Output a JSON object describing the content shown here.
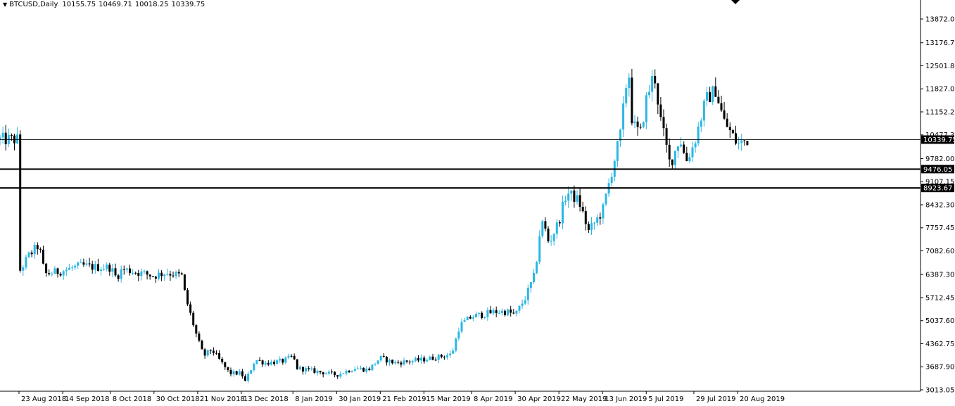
{
  "header": {
    "symbol": "BTCUSD,Daily",
    "open": "10155.75",
    "high": "10469.71",
    "low": "10018.25",
    "close": "10339.75"
  },
  "colors": {
    "bull": "#2bb7e4",
    "bear": "#000000",
    "axis": "#000000",
    "background": "#ffffff",
    "price_label_bg": "#000000",
    "price_label_text": "#ffffff"
  },
  "chart_data": {
    "type": "candlestick",
    "title": "",
    "y_ticks": [
      "13872.00",
      "13176.70",
      "12501.85",
      "11827.00",
      "11152.25",
      "10477.30",
      "9782.00",
      "9107.15",
      "8432.30",
      "7757.45",
      "7082.60",
      "6387.30",
      "5712.45",
      "5037.60",
      "4362.75",
      "3687.90",
      "3013.05"
    ],
    "x_ticks": [
      "23 Aug 2018",
      "14 Sep 2018",
      "8 Oct 2018",
      "30 Oct 2018",
      "21 Nov 2018",
      "13 Dec 2018",
      "8 Jan 2019",
      "30 Jan 2019",
      "21 Feb 2019",
      "15 Mar 2019",
      "8 Apr 2019",
      "30 Apr 2019",
      "22 May 2019",
      "13 Jun 2019",
      "5 Jul 2019",
      "29 Jul 2019",
      "20 Aug 2019"
    ],
    "horizontal_lines": [
      {
        "price": "10339.75",
        "style": "thin"
      },
      {
        "price": "9476.05",
        "style": "thick"
      },
      {
        "price": "8923.67",
        "style": "thick"
      }
    ],
    "anchor_points": [
      [
        "23 Aug 2018",
        6450
      ],
      [
        "28 Aug 2018",
        6950
      ],
      [
        "2 Sep 2018",
        7250
      ],
      [
        "5 Sep 2018",
        6400
      ],
      [
        "14 Sep 2018",
        6500
      ],
      [
        "20 Sep 2018",
        6600
      ],
      [
        "24 Sep 2018",
        6650
      ],
      [
        "30 Sep 2018",
        6600
      ],
      [
        "8 Oct 2018",
        6600
      ],
      [
        "11 Oct 2018",
        6300
      ],
      [
        "14 Oct 2018",
        6550
      ],
      [
        "30 Oct 2018",
        6350
      ],
      [
        "5 Nov 2018",
        6450
      ],
      [
        "13 Nov 2018",
        6350
      ],
      [
        "15 Nov 2018",
        5700
      ],
      [
        "19 Nov 2018",
        4900
      ],
      [
        "21 Nov 2018",
        4500
      ],
      [
        "24 Nov 2018",
        4000
      ],
      [
        "28 Nov 2018",
        4200
      ],
      [
        "7 Dec 2018",
        3500
      ],
      [
        "13 Dec 2018",
        3500
      ],
      [
        "15 Dec 2018",
        3250
      ],
      [
        "20 Dec 2018",
        3900
      ],
      [
        "25 Dec 2018",
        3800
      ],
      [
        "3 Jan 2019",
        3850
      ],
      [
        "8 Jan 2019",
        4000
      ],
      [
        "10 Jan 2019",
        3650
      ],
      [
        "30 Jan 2019",
        3450
      ],
      [
        "8 Feb 2019",
        3650
      ],
      [
        "15 Feb 2019",
        3600
      ],
      [
        "21 Feb 2019",
        3950
      ],
      [
        "28 Feb 2019",
        3800
      ],
      [
        "15 Mar 2019",
        3900
      ],
      [
        "29 Mar 2019",
        4050
      ],
      [
        "2 Apr 2019",
        4900
      ],
      [
        "8 Apr 2019",
        5150
      ],
      [
        "20 Apr 2019",
        5300
      ],
      [
        "26 Apr 2019",
        5300
      ],
      [
        "30 Apr 2019",
        5200
      ],
      [
        "5 May 2019",
        5700
      ],
      [
        "10 May 2019",
        6400
      ],
      [
        "12 May 2019",
        7500
      ],
      [
        "14 May 2019",
        7950
      ],
      [
        "17 May 2019",
        7300
      ],
      [
        "22 May 2019",
        7950
      ],
      [
        "26 May 2019",
        8800
      ],
      [
        "1 Jun 2019",
        8550
      ],
      [
        "6 Jun 2019",
        7650
      ],
      [
        "13 Jun 2019",
        8250
      ],
      [
        "16 Jun 2019",
        9000
      ],
      [
        "22 Jun 2019",
        10500
      ],
      [
        "26 Jun 2019",
        12500
      ],
      [
        "28 Jun 2019",
        10800
      ],
      [
        "2 Jul 2019",
        10500
      ],
      [
        "5 Jul 2019",
        11500
      ],
      [
        "9 Jul 2019",
        12300
      ],
      [
        "12 Jul 2019",
        11000
      ],
      [
        "17 Jul 2019",
        9600
      ],
      [
        "22 Jul 2019",
        10400
      ],
      [
        "25 Jul 2019",
        9700
      ],
      [
        "29 Jul 2019",
        10200
      ],
      [
        "4 Aug 2019",
        11500
      ],
      [
        "9 Aug 2019",
        11800
      ],
      [
        "13 Aug 2019",
        10900
      ],
      [
        "20 Aug 2019",
        10200
      ],
      [
        "25 Aug 2019",
        10339.75
      ]
    ]
  }
}
